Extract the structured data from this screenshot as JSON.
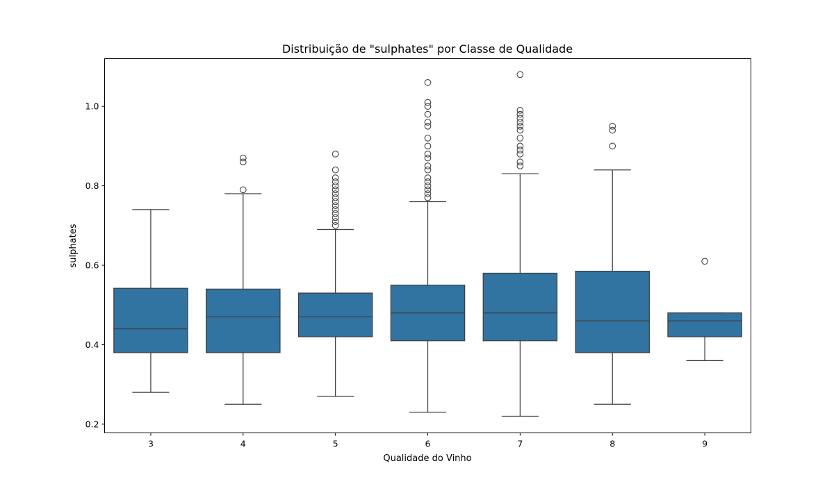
{
  "chart_data": {
    "type": "box",
    "title": "Distribuição de \"sulphates\" por Classe de Qualidade",
    "xlabel": "Qualidade do Vinho",
    "ylabel": "sulphates",
    "ylim": [
      0.178,
      1.12
    ],
    "yticks": [
      "0.2",
      "0.4",
      "0.6",
      "0.8",
      "1.0"
    ],
    "grid": false,
    "color": "#3274a1",
    "categories": [
      "3",
      "4",
      "5",
      "6",
      "7",
      "8",
      "9"
    ],
    "boxes": [
      {
        "category": "3",
        "whisker_low": 0.28,
        "q1": 0.38,
        "median": 0.44,
        "q3": 0.542,
        "whisker_high": 0.74,
        "outliers": []
      },
      {
        "category": "4",
        "whisker_low": 0.25,
        "q1": 0.38,
        "median": 0.47,
        "q3": 0.54,
        "whisker_high": 0.78,
        "outliers": [
          0.79,
          0.86,
          0.87
        ]
      },
      {
        "category": "5",
        "whisker_low": 0.27,
        "q1": 0.42,
        "median": 0.47,
        "q3": 0.53,
        "whisker_high": 0.69,
        "outliers": [
          0.7,
          0.71,
          0.72,
          0.73,
          0.74,
          0.75,
          0.76,
          0.77,
          0.78,
          0.79,
          0.8,
          0.81,
          0.82,
          0.84,
          0.88
        ]
      },
      {
        "category": "6",
        "whisker_low": 0.23,
        "q1": 0.41,
        "median": 0.48,
        "q3": 0.55,
        "whisker_high": 0.76,
        "outliers": [
          0.77,
          0.78,
          0.79,
          0.8,
          0.81,
          0.82,
          0.84,
          0.85,
          0.87,
          0.88,
          0.9,
          0.92,
          0.95,
          0.96,
          0.98,
          1.0,
          1.01,
          1.06
        ]
      },
      {
        "category": "7",
        "whisker_low": 0.22,
        "q1": 0.41,
        "median": 0.48,
        "q3": 0.58,
        "whisker_high": 0.83,
        "outliers": [
          0.85,
          0.86,
          0.88,
          0.89,
          0.9,
          0.92,
          0.94,
          0.95,
          0.96,
          0.97,
          0.98,
          0.99,
          1.08
        ]
      },
      {
        "category": "8",
        "whisker_low": 0.25,
        "q1": 0.38,
        "median": 0.46,
        "q3": 0.585,
        "whisker_high": 0.84,
        "outliers": [
          0.9,
          0.94,
          0.95
        ]
      },
      {
        "category": "9",
        "whisker_low": 0.36,
        "q1": 0.42,
        "median": 0.46,
        "q3": 0.48,
        "whisker_high": 0.48,
        "outliers": [
          0.61
        ]
      }
    ]
  }
}
